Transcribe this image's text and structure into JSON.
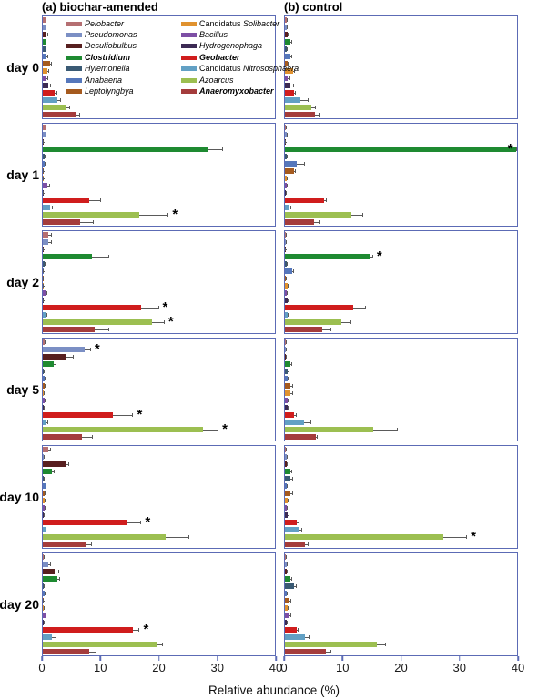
{
  "titles": {
    "panel_a": "(a) biochar-amended",
    "panel_b": "(b) control"
  },
  "xlabel": "Relative abundance (%)",
  "style": {
    "panel_border": "#5c6bb5",
    "error_bar": "#5a5a5a",
    "background": "#ffffff"
  },
  "chart_data": {
    "type": "bar",
    "orientation": "horizontal",
    "xlim": [
      0,
      40
    ],
    "xticks": [
      0,
      10,
      20,
      30,
      40
    ],
    "xlabel": "Relative abundance (%)",
    "sig_marker": "*",
    "legend": {
      "position": "inside-first-biochar-panel",
      "columns": 2,
      "split": 7
    },
    "taxa": [
      {
        "prefix": "",
        "name": "Pelobacter",
        "color": "#b56f72",
        "bold": false
      },
      {
        "prefix": "",
        "name": "Pseudomonas",
        "color": "#7b8fc4",
        "bold": false
      },
      {
        "prefix": "",
        "name": "Desulfobulbus",
        "color": "#571f1f",
        "bold": false
      },
      {
        "prefix": "",
        "name": "Clostridium",
        "color": "#1e8a31",
        "bold": true
      },
      {
        "prefix": "",
        "name": "Hylemonella",
        "color": "#3a5a74",
        "bold": false
      },
      {
        "prefix": "",
        "name": "Anabaena",
        "color": "#5577bb",
        "bold": false
      },
      {
        "prefix": "",
        "name": "Leptolyngbya",
        "color": "#a55a1e",
        "bold": false
      },
      {
        "prefix": "Candidatus ",
        "name": "Solibacter",
        "color": "#e0922f",
        "bold": false
      },
      {
        "prefix": "",
        "name": "Bacillus",
        "color": "#7d4fa5",
        "bold": false
      },
      {
        "prefix": "",
        "name": "Hydrogenophaga",
        "color": "#3c2a54",
        "bold": false
      },
      {
        "prefix": "",
        "name": "Geobacter",
        "color": "#d01d1d",
        "bold": true
      },
      {
        "prefix": "Candidatus ",
        "name": "Nitrososphaera",
        "color": "#62a0c4",
        "bold": false
      },
      {
        "prefix": "",
        "name": "Azoarcus",
        "color": "#9cbf51",
        "bold": false
      },
      {
        "prefix": "",
        "name": "Anaeromyxobacter",
        "color": "#a43c3c",
        "bold": true
      }
    ],
    "rows": [
      {
        "label": "day 0",
        "biochar": {
          "values": [
            0.5,
            0.5,
            0.7,
            0.4,
            0.5,
            0.7,
            1.2,
            0.8,
            0.7,
            1.0,
            2.0,
            2.5,
            4.0,
            5.6
          ],
          "errors": [
            0.2,
            0.2,
            0.3,
            0.2,
            0.2,
            0.3,
            0.4,
            0.3,
            0.3,
            0.4,
            0.5,
            0.7,
            0.7,
            0.9
          ],
          "sig": []
        },
        "control": {
          "values": [
            0.3,
            0.3,
            0.4,
            1.0,
            0.3,
            1.0,
            0.4,
            1.4,
            0.5,
            1.0,
            1.5,
            2.7,
            4.5,
            5.1
          ],
          "errors": [
            0.1,
            0.1,
            0.2,
            0.3,
            0.1,
            0.3,
            0.3,
            0.4,
            0.5,
            0.6,
            0.4,
            1.3,
            0.9,
            0.9
          ],
          "sig": []
        }
      },
      {
        "label": "day 1",
        "biochar": {
          "values": [
            0.4,
            0.5,
            0.1,
            28.4,
            0.3,
            0.3,
            0.1,
            0.1,
            0.8,
            0.1,
            8.0,
            1.2,
            16.7,
            6.4
          ],
          "errors": [
            0.2,
            0.2,
            0.1,
            2.6,
            0.1,
            0.1,
            0.1,
            0.1,
            0.5,
            0.1,
            2.0,
            0.5,
            5.0,
            2.4
          ],
          "sig": [
            12
          ]
        },
        "control": {
          "values": [
            0.2,
            0.3,
            0.1,
            39.8,
            0.3,
            2.0,
            1.5,
            0.3,
            0.3,
            0.2,
            6.7,
            0.8,
            11.5,
            5.0
          ],
          "errors": [
            0.1,
            0.1,
            0.1,
            0.2,
            0.1,
            1.5,
            0.4,
            0.1,
            0.1,
            0.1,
            0.5,
            0.3,
            2.0,
            1.0
          ],
          "sig": [
            3
          ]
        }
      },
      {
        "label": "day 2",
        "biochar": {
          "values": [
            1.0,
            1.0,
            0.1,
            8.5,
            0.3,
            0.1,
            0.1,
            0.1,
            0.5,
            0.1,
            17.0,
            0.5,
            18.8,
            9.0
          ],
          "errors": [
            0.5,
            0.5,
            0.1,
            3.0,
            0.1,
            0.1,
            0.1,
            0.1,
            0.3,
            0.1,
            3.0,
            0.3,
            2.2,
            2.5
          ],
          "sig": [
            10,
            12
          ]
        },
        "control": {
          "values": [
            0.2,
            0.2,
            0.1,
            14.7,
            0.3,
            1.3,
            0.2,
            0.5,
            0.3,
            0.5,
            11.8,
            0.5,
            9.7,
            6.5
          ],
          "errors": [
            0.1,
            0.1,
            0.1,
            0.5,
            0.1,
            0.3,
            0.1,
            0.2,
            0.1,
            0.2,
            2.2,
            0.2,
            1.8,
            1.5
          ],
          "sig": [
            3
          ]
        }
      },
      {
        "label": "day 5",
        "biochar": {
          "values": [
            0.3,
            7.2,
            4.1,
            1.9,
            0.2,
            0.3,
            0.3,
            0.2,
            0.3,
            0.2,
            12.1,
            0.5,
            27.6,
            6.7
          ],
          "errors": [
            0.1,
            1.1,
            1.2,
            0.4,
            0.1,
            0.1,
            0.1,
            0.1,
            0.1,
            0.1,
            3.5,
            0.5,
            2.7,
            1.9
          ],
          "sig": [
            1,
            10,
            12
          ]
        },
        "control": {
          "values": [
            0.2,
            0.2,
            0.2,
            1.0,
            0.5,
            0.5,
            1.0,
            1.0,
            0.5,
            0.5,
            1.6,
            3.3,
            15.2,
            5.4
          ],
          "errors": [
            0.1,
            0.1,
            0.1,
            0.3,
            0.3,
            0.2,
            0.4,
            0.4,
            0.2,
            0.2,
            0.4,
            1.2,
            4.3,
            0.3
          ],
          "sig": []
        }
      },
      {
        "label": "day 10",
        "biochar": {
          "values": [
            1.0,
            0.2,
            4.0,
            1.5,
            0.2,
            0.5,
            0.3,
            0.3,
            0.3,
            0.2,
            14.5,
            0.5,
            21.2,
            7.3
          ],
          "errors": [
            0.4,
            0.1,
            0.6,
            0.5,
            0.1,
            0.2,
            0.1,
            0.1,
            0.1,
            0.1,
            2.5,
            0.2,
            4.0,
            1.2
          ],
          "sig": [
            10
          ]
        },
        "control": {
          "values": [
            0.2,
            0.3,
            0.3,
            1.0,
            1.0,
            0.3,
            1.0,
            0.5,
            0.3,
            0.5,
            2.0,
            2.5,
            27.3,
            3.5
          ],
          "errors": [
            0.1,
            0.1,
            0.1,
            0.3,
            0.4,
            0.1,
            0.4,
            0.2,
            0.1,
            0.3,
            0.5,
            0.5,
            4.1,
            0.5
          ],
          "sig": [
            12
          ]
        }
      },
      {
        "label": "day 20",
        "biochar": {
          "values": [
            0.2,
            1.0,
            2.0,
            2.5,
            0.2,
            0.3,
            0.1,
            0.2,
            0.5,
            0.2,
            15.5,
            1.5,
            19.6,
            8.0
          ],
          "errors": [
            0.1,
            0.4,
            0.8,
            0.5,
            0.1,
            0.1,
            0.1,
            0.1,
            0.2,
            0.1,
            1.2,
            0.8,
            1.1,
            1.2
          ],
          "sig": [
            10
          ]
        },
        "control": {
          "values": [
            0.2,
            0.3,
            0.3,
            1.0,
            1.5,
            0.3,
            0.8,
            0.5,
            0.8,
            0.3,
            2.0,
            3.4,
            15.8,
            7.0
          ],
          "errors": [
            0.1,
            0.1,
            0.1,
            0.3,
            0.5,
            0.1,
            0.3,
            0.2,
            0.3,
            0.1,
            0.3,
            0.8,
            1.6,
            1.0
          ],
          "sig": []
        }
      }
    ]
  }
}
